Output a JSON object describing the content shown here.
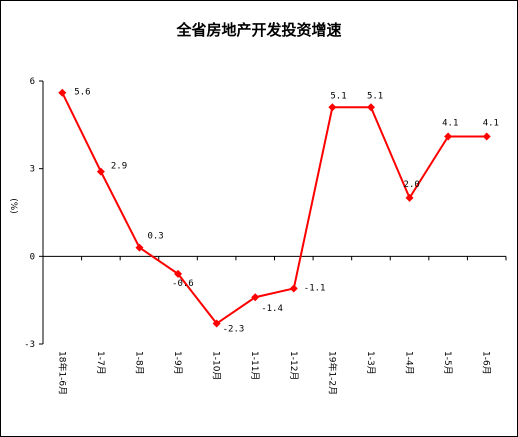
{
  "chart_data": {
    "type": "line",
    "title": "全省房地产开发投资增速",
    "ylabel": "(%)",
    "xlabel": "",
    "ylim": [
      -3,
      6
    ],
    "yticks": [
      6,
      3,
      0,
      -3
    ],
    "grid": false,
    "color": "#ff0000",
    "categories": [
      "18年1-6月",
      "1-7月",
      "1-8月",
      "1-9月",
      "1-10月",
      "1-11月",
      "1-12月",
      "19年1-2月",
      "1-3月",
      "1-4月",
      "1-5月",
      "1-6月"
    ],
    "values": [
      5.6,
      2.9,
      0.3,
      -0.6,
      -2.3,
      -1.4,
      -1.1,
      5.1,
      5.1,
      2.0,
      4.1,
      4.1
    ],
    "value_labels": [
      "5.6",
      "2.9",
      "0.3",
      "-0.6",
      "-2.3",
      "-1.4",
      "-1.1",
      "5.1",
      "5.1",
      "2.0",
      "4.1",
      "4.1"
    ]
  }
}
